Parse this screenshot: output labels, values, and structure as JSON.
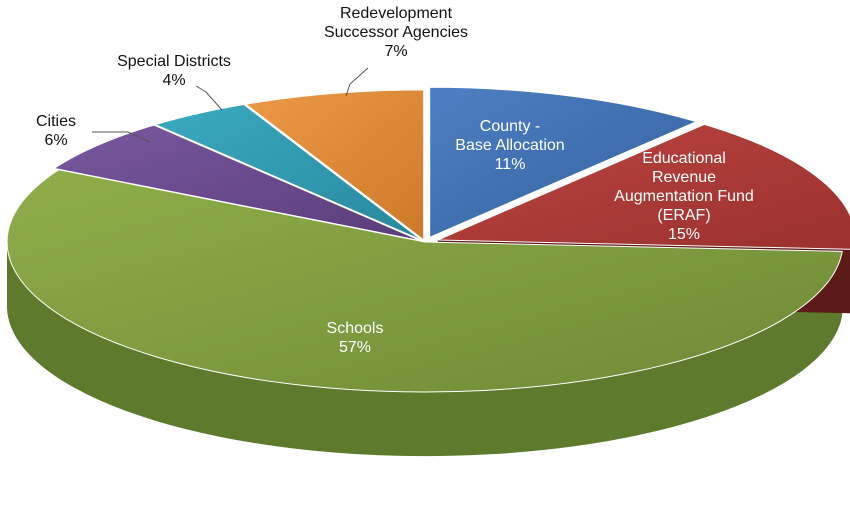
{
  "chart_data": {
    "type": "pie",
    "style": "3d-exploded",
    "title": "",
    "slices": [
      {
        "key": "county",
        "lines": [
          "County -",
          "Base Allocation"
        ],
        "pct_label": "11%",
        "value": 11,
        "color": "#3e6fb3",
        "label_inside": true
      },
      {
        "key": "eraf",
        "lines": [
          "Educational",
          "Revenue",
          "Augmentation Fund",
          "(ERAF)"
        ],
        "pct_label": "15%",
        "value": 15,
        "color": "#b03a37",
        "label_inside": true
      },
      {
        "key": "schools",
        "lines": [
          "Schools"
        ],
        "pct_label": "57%",
        "value": 57,
        "color": "#7f9c3f",
        "label_inside": true
      },
      {
        "key": "cities",
        "lines": [
          "Cities"
        ],
        "pct_label": "6%",
        "value": 6,
        "color": "#6a4a8c",
        "label_inside": false
      },
      {
        "key": "special",
        "lines": [
          "Special Districts"
        ],
        "pct_label": "4%",
        "value": 4,
        "color": "#2f9ab0",
        "label_inside": false
      },
      {
        "key": "redev",
        "lines": [
          "Redevelopment",
          "Successor Agencies"
        ],
        "pct_label": "7%",
        "value": 7,
        "color": "#e08a35",
        "label_inside": false
      }
    ]
  }
}
